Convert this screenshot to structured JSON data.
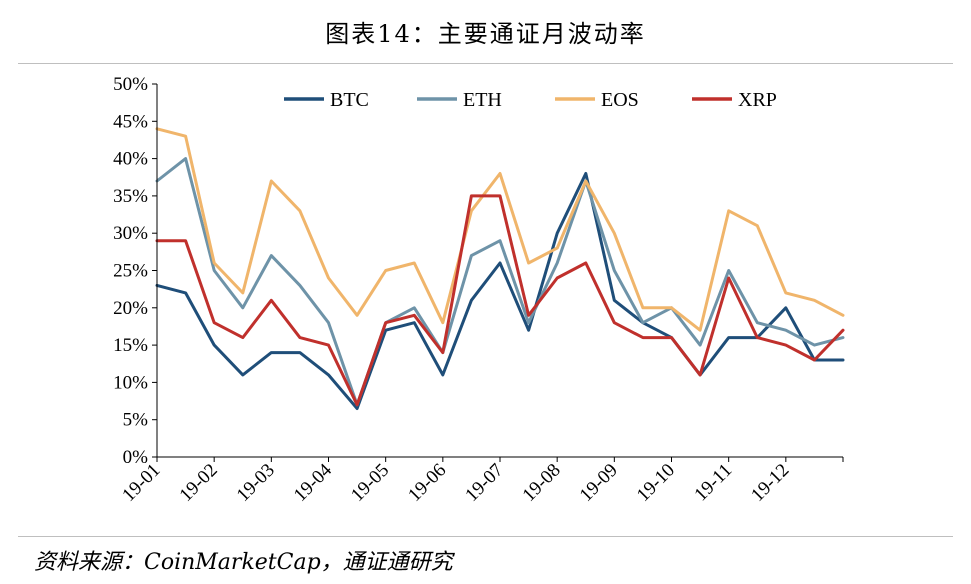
{
  "title": "图表14：主要通证月波动率",
  "source": "资料来源：CoinMarketCap，通证通研究",
  "chart_data": {
    "type": "line",
    "x": [
      0,
      0.5,
      1,
      1.5,
      2,
      2.5,
      3,
      3.5,
      4,
      4.5,
      5,
      5.5,
      6,
      6.5,
      7,
      7.5,
      8,
      8.5,
      9,
      9.5,
      10,
      10.5,
      11,
      11.5,
      12
    ],
    "xticks": [
      "19-01",
      "19-02",
      "19-03",
      "19-04",
      "19-05",
      "19-06",
      "19-07",
      "19-08",
      "19-09",
      "19-10",
      "19-11",
      "19-12"
    ],
    "ylim": [
      0,
      50
    ],
    "yticks": [
      "0%",
      "5%",
      "10%",
      "15%",
      "20%",
      "25%",
      "30%",
      "35%",
      "40%",
      "45%",
      "50%"
    ],
    "legend_position": "top",
    "series": [
      {
        "name": "BTC",
        "color": "#1f4e79",
        "values": [
          23,
          22,
          15,
          11,
          14,
          14,
          11,
          6.5,
          17,
          18,
          11,
          21,
          26,
          17,
          30,
          38,
          21,
          18,
          16,
          11,
          16,
          16,
          20,
          13,
          13
        ]
      },
      {
        "name": "ETH",
        "color": "#6e93a8",
        "values": [
          37,
          40,
          25,
          20,
          27,
          23,
          18,
          7,
          18,
          20,
          14,
          27,
          29,
          18,
          26,
          37,
          25,
          18,
          20,
          15,
          25,
          18,
          17,
          15,
          16
        ]
      },
      {
        "name": "EOS",
        "color": "#f0b56b",
        "values": [
          44,
          43,
          26,
          22,
          37,
          33,
          24,
          19,
          25,
          26,
          18,
          33,
          38,
          26,
          28,
          37,
          30,
          20,
          20,
          17,
          33,
          31,
          22,
          21,
          19
        ]
      },
      {
        "name": "XRP",
        "color": "#c0302c",
        "values": [
          29,
          29,
          18,
          16,
          21,
          16,
          15,
          7,
          18,
          19,
          14,
          35,
          35,
          19,
          24,
          26,
          18,
          16,
          16,
          11,
          24,
          16,
          15,
          13,
          17
        ]
      }
    ]
  }
}
